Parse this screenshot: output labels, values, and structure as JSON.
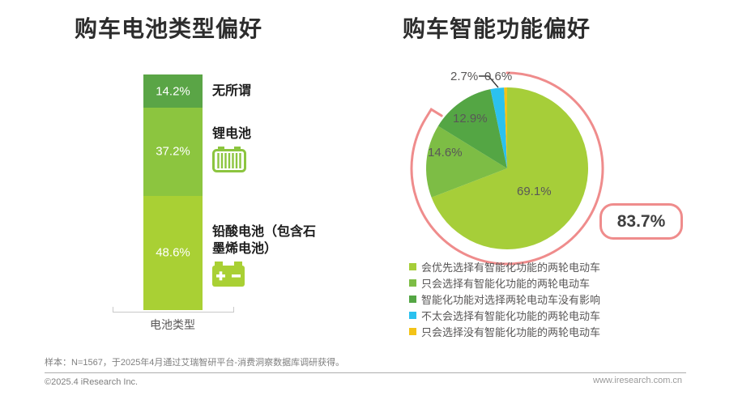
{
  "chart_data": [
    {
      "type": "bar",
      "stacked": true,
      "title": "购车电池类型偏好",
      "xlabel": "电池类型",
      "categories": [
        "电池类型"
      ],
      "ylim": [
        0,
        100
      ],
      "unit": "%",
      "segments_top_to_bottom": [
        {
          "label": "无所谓",
          "value": 14.2,
          "display": "14.2%",
          "color": "#5aa546",
          "icon": "none"
        },
        {
          "label": "锂电池",
          "value": 37.2,
          "display": "37.2%",
          "color": "#8cc53f",
          "icon": "lithium-battery"
        },
        {
          "label": "铅酸电池（包含石墨烯电池）",
          "value": 48.6,
          "display": "48.6%",
          "color": "#a9d034",
          "icon": "lead-acid-battery"
        }
      ]
    },
    {
      "type": "pie",
      "title": "购车智能功能偏好",
      "start_angle_deg": 0,
      "direction": "clockwise",
      "legend_position": "bottom",
      "slices": [
        {
          "label": "会优先选择有智能化功能的两轮电动车",
          "value": 69.1,
          "display": "69.1%",
          "color": "#a6ce39"
        },
        {
          "label": "只会选择有智能化功能的两轮电动车",
          "value": 14.6,
          "display": "14.6%",
          "color": "#7dbd45"
        },
        {
          "label": "智能化功能对选择两轮电动车没有影响",
          "value": 12.9,
          "display": "12.9%",
          "color": "#54a644"
        },
        {
          "label": "不太会选择有智能化功能的两轮电动车",
          "value": 2.7,
          "display": "2.7%",
          "color": "#2bc1ef"
        },
        {
          "label": "只会选择没有智能化功能的两轮电动车",
          "value": 0.6,
          "display": "0.6%",
          "color": "#f3c317"
        }
      ],
      "highlight": {
        "display": "83.7%",
        "value": 83.7,
        "covers_slices": [
          0,
          1
        ],
        "color": "#ef8c8c"
      }
    }
  ],
  "footer": {
    "note": "样本：N=1567，于2025年4月通过艾瑞智研平台-消费洞察数据库调研获得。",
    "copyright": "©2025.4 iResearch Inc.",
    "website": "www.iresearch.com.cn"
  }
}
